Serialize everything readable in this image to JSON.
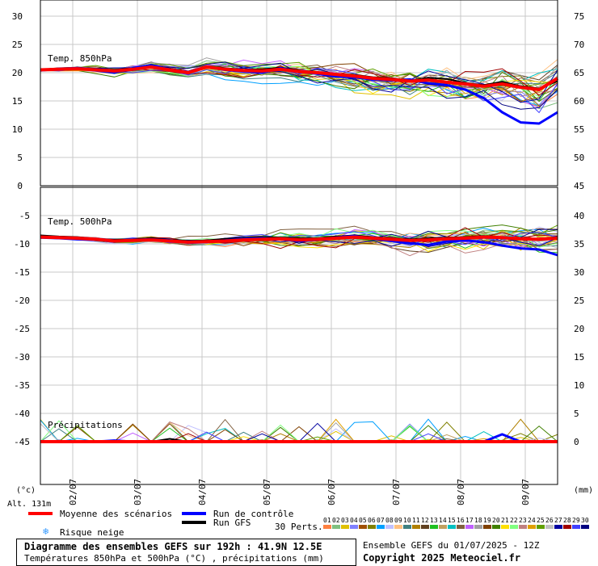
{
  "chart_data": {
    "type": "line",
    "x_ticks": [
      "02/07",
      "03/07",
      "04/07",
      "05/07",
      "06/07",
      "07/07",
      "08/07",
      "09/07"
    ],
    "panels": [
      {
        "label": "Temp. 850hPa",
        "left_ticks": [
          "30",
          "25",
          "20",
          "15",
          "10",
          "5",
          "0"
        ],
        "right_ticks": [
          "75",
          "70",
          "65",
          "60",
          "55",
          "50",
          "45"
        ],
        "ylim": [
          0,
          30
        ],
        "series": [
          {
            "name": "Moyenne des scénarios",
            "values": [
              20.5,
              20.6,
              20.7,
              20.5,
              20.3,
              20.6,
              21.0,
              20.5,
              20.0,
              21.0,
              20.6,
              20.4,
              20.3,
              20.6,
              20.2,
              20.0,
              19.7,
              19.4,
              19.0,
              18.8,
              18.5,
              18.7,
              18.3,
              18.0,
              17.6,
              18.0,
              17.4,
              17.0,
              19.0
            ]
          },
          {
            "name": "Run de contrôle",
            "values": [
              20.4,
              20.7,
              20.8,
              20.4,
              20.0,
              20.8,
              21.3,
              20.6,
              20.1,
              21.0,
              20.5,
              20.2,
              20.0,
              20.8,
              20.2,
              19.8,
              19.3,
              19.2,
              18.8,
              18.6,
              18.8,
              18.1,
              17.8,
              17.0,
              15.5,
              13.0,
              11.2,
              11.0,
              13.0
            ]
          },
          {
            "name": "Run GFS",
            "values": [
              20.6,
              20.5,
              20.6,
              20.6,
              20.5,
              20.8,
              21.4,
              20.7,
              20.2,
              21.1,
              20.8,
              20.5,
              20.6,
              20.9,
              20.4,
              20.1,
              19.8,
              19.6,
              19.2,
              19.0,
              18.6,
              19.1,
              18.9,
              18.2,
              17.8,
              18.4,
              17.6,
              17.2,
              18.5
            ]
          }
        ]
      },
      {
        "label": "Temp. 500hPa",
        "left_ticks": [
          "-5",
          "-10",
          "-15",
          "-20",
          "-25",
          "-30",
          "-35",
          "-40",
          "-45"
        ],
        "right_ticks": [
          "40",
          "35",
          "30",
          "25",
          "20",
          "15",
          "10",
          "5",
          "0"
        ],
        "ylim": [
          -49,
          -4
        ],
        "series": [
          {
            "name": "Moyenne des scénarios",
            "values": [
              -8.8,
              -8.9,
              -9.0,
              -9.2,
              -9.5,
              -9.4,
              -9.3,
              -9.5,
              -9.7,
              -9.6,
              -9.5,
              -9.3,
              -9.2,
              -9.1,
              -9.3,
              -9.2,
              -9.0,
              -8.8,
              -9.0,
              -9.2,
              -9.4,
              -9.3,
              -9.1,
              -9.0,
              -8.8,
              -8.9,
              -9.1,
              -9.2,
              -9.0
            ]
          },
          {
            "name": "Run de contrôle",
            "values": [
              -8.9,
              -9.0,
              -9.2,
              -9.3,
              -9.6,
              -9.3,
              -9.2,
              -9.4,
              -9.8,
              -9.7,
              -9.4,
              -9.1,
              -9.0,
              -9.2,
              -9.5,
              -9.3,
              -8.9,
              -8.6,
              -9.1,
              -9.5,
              -9.9,
              -10.2,
              -9.6,
              -9.4,
              -9.7,
              -10.3,
              -10.8,
              -11.0,
              -12.0
            ]
          },
          {
            "name": "Run GFS",
            "values": [
              -8.5,
              -8.7,
              -8.8,
              -9.1,
              -9.3,
              -9.2,
              -9.0,
              -9.3,
              -9.5,
              -9.4,
              -9.1,
              -8.9,
              -8.8,
              -8.9,
              -9.0,
              -9.0,
              -8.7,
              -8.5,
              -8.8,
              -9.0,
              -9.2,
              -9.0,
              -8.9,
              -8.8,
              -8.6,
              -8.8,
              -9.0,
              -9.1,
              -8.8
            ]
          }
        ]
      },
      {
        "label": "Précipitations",
        "ylim": [
          -49,
          -4
        ],
        "series": [
          {
            "name": "Moyenne des scénarios",
            "values": [
              -45,
              -45,
              -45,
              -45,
              -45,
              -45,
              -45,
              -45,
              -45,
              -45,
              -45,
              -45,
              -45,
              -45,
              -45,
              -45,
              -45,
              -45,
              -45,
              -45,
              -45,
              -45,
              -45,
              -45,
              -45,
              -45,
              -45,
              -45,
              -45
            ]
          },
          {
            "name": "Run de contrôle",
            "values": [
              -45,
              -45,
              -45,
              -45,
              -44.8,
              -45,
              -45,
              -45,
              -45,
              -45,
              -45,
              -45,
              -45,
              -45,
              -45,
              -45,
              -45,
              -45,
              -45,
              -45,
              -45,
              -45,
              -45,
              -45,
              -45,
              -43.7,
              -45,
              -45,
              -45
            ]
          },
          {
            "name": "Run GFS",
            "values": [
              -45,
              -45,
              -45,
              -45,
              -45,
              -45,
              -45,
              -44.5,
              -45,
              -45,
              -45,
              -45,
              -45,
              -45,
              -45,
              -45,
              -45,
              -45,
              -45,
              -45,
              -45,
              -45,
              -45,
              -45,
              -45,
              -45,
              -45,
              -45,
              -45
            ]
          }
        ]
      }
    ],
    "y_unit_left": "(°c)",
    "y_unit_right": "(mm)",
    "legend": {
      "mean": {
        "label": "Moyenne des scénarios",
        "color": "#ff0000"
      },
      "control": {
        "label": "Run de contrôle",
        "color": "#0000ff"
      },
      "gfs": {
        "label": "Run GFS",
        "color": "#000000"
      },
      "snow": {
        "label": "Risque neige",
        "color": "#3399ff"
      },
      "perts_label": "30 Perts.",
      "perts": [
        "01",
        "02",
        "03",
        "04",
        "05",
        "06",
        "07",
        "08",
        "09",
        "10",
        "11",
        "12",
        "13",
        "14",
        "15",
        "16",
        "17",
        "18",
        "19",
        "20",
        "21",
        "22",
        "23",
        "24",
        "25",
        "26",
        "27",
        "28",
        "29",
        "30"
      ],
      "pert_colors": [
        "#ff8040",
        "#80c080",
        "#e0c000",
        "#8080ff",
        "#a05000",
        "#808000",
        "#00a0ff",
        "#c0c0ff",
        "#ffc080",
        "#408080",
        "#b08000",
        "#604020",
        "#20c020",
        "#c0a060",
        "#00c0c0",
        "#806040",
        "#c060ff",
        "#a0a0a0",
        "#804000",
        "#408000",
        "#ffe000",
        "#80ff80",
        "#c08080",
        "#e0a000",
        "#60a000",
        "#c0c0c0",
        "#0000a0",
        "#a00000",
        "#4040ff",
        "#000080"
      ]
    },
    "alt": "Alt. 131m",
    "title": "Diagramme des ensembles GEFS sur 192h : 41.9N 12.5E",
    "subtitle": "Températures 850hPa et 500hPa (°C) , précipitations (mm)",
    "run_info": "Ensemble GEFS du 01/07/2025 - 12Z",
    "copyright": "Copyright 2025 Meteociel.fr"
  }
}
